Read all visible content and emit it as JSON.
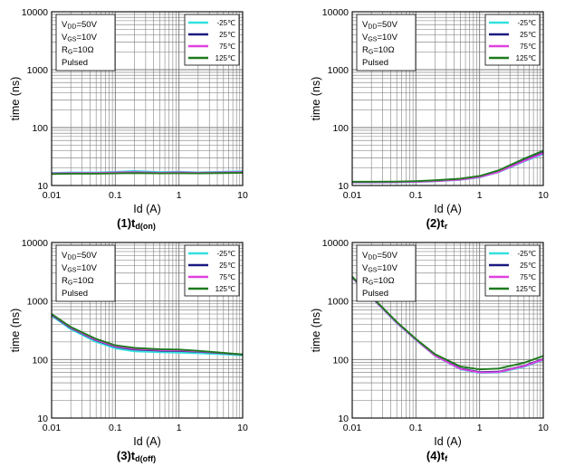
{
  "colors": {
    "series": [
      "#33e0e0",
      "#1a1a80",
      "#e040e0",
      "#1e7a1e"
    ],
    "grid": "#777777",
    "frame": "#000000"
  },
  "chart_data": [
    {
      "type": "line",
      "title_main": "(1)t",
      "title_sub": "d(on)",
      "xlabel": "Id (A)",
      "ylabel": "time (ns)",
      "xscale": "log",
      "yscale": "log",
      "xlim": [
        0.01,
        10
      ],
      "ylim": [
        10,
        10000
      ],
      "x_ticks": [
        "0.01",
        "0.1",
        "1",
        "10"
      ],
      "y_ticks": [
        "10",
        "100",
        "1000",
        "10000"
      ],
      "conditions": [
        {
          "main": "V",
          "sub": "DD",
          "rest": "=50V"
        },
        {
          "main": "V",
          "sub": "GS",
          "rest": "=10V"
        },
        {
          "main": "R",
          "sub": "G",
          "rest": "=10Ω"
        },
        {
          "main": "Pulsed",
          "sub": "",
          "rest": ""
        }
      ],
      "legend_position": "top-right",
      "x": [
        0.01,
        0.02,
        0.05,
        0.1,
        0.2,
        0.5,
        1,
        2,
        5,
        10
      ],
      "series": [
        {
          "name": "-25℃",
          "values": [
            16.5,
            16.8,
            16.8,
            17.2,
            17.8,
            17.0,
            17.3,
            16.9,
            17.3,
            17.6
          ]
        },
        {
          "name": "25℃",
          "values": [
            16.0,
            16.2,
            16.2,
            16.4,
            16.7,
            16.4,
            16.6,
            16.4,
            16.6,
            16.9
          ]
        },
        {
          "name": "75℃",
          "values": [
            16.2,
            16.4,
            16.4,
            16.8,
            17.0,
            16.6,
            16.9,
            16.6,
            16.9,
            17.1
          ]
        },
        {
          "name": "125℃",
          "values": [
            15.8,
            16.0,
            16.0,
            16.2,
            16.4,
            16.2,
            16.3,
            16.2,
            16.4,
            16.6
          ]
        }
      ]
    },
    {
      "type": "line",
      "title_main": "(2)t",
      "title_sub": "r",
      "xlabel": "Id (A)",
      "ylabel": "time (ns)",
      "xscale": "log",
      "yscale": "log",
      "xlim": [
        0.01,
        10
      ],
      "ylim": [
        10,
        10000
      ],
      "x_ticks": [
        "0.01",
        "0.1",
        "1",
        "10"
      ],
      "y_ticks": [
        "10",
        "100",
        "1000",
        "10000"
      ],
      "conditions": [
        {
          "main": "V",
          "sub": "DD",
          "rest": "=50V"
        },
        {
          "main": "V",
          "sub": "GS",
          "rest": "=10V"
        },
        {
          "main": "R",
          "sub": "G",
          "rest": "=10Ω"
        },
        {
          "main": "Pulsed",
          "sub": "",
          "rest": ""
        }
      ],
      "legend_position": "top-right",
      "x": [
        0.01,
        0.02,
        0.05,
        0.1,
        0.2,
        0.5,
        1,
        2,
        5,
        10
      ],
      "series": [
        {
          "name": "-25℃",
          "values": [
            11.2,
            11.2,
            11.3,
            11.5,
            11.8,
            12.5,
            13.8,
            17.0,
            26.0,
            35.0
          ]
        },
        {
          "name": "25℃",
          "values": [
            11.4,
            11.4,
            11.5,
            11.7,
            12.0,
            12.8,
            14.2,
            17.5,
            27.0,
            37.0
          ]
        },
        {
          "name": "75℃",
          "values": [
            11.3,
            11.3,
            11.4,
            11.6,
            11.9,
            12.6,
            14.0,
            17.2,
            26.5,
            36.0
          ]
        },
        {
          "name": "125℃",
          "values": [
            11.6,
            11.6,
            11.7,
            11.9,
            12.3,
            13.1,
            14.6,
            18.3,
            29.0,
            40.0
          ]
        }
      ]
    },
    {
      "type": "line",
      "title_main": "(3)t",
      "title_sub": "d(off)",
      "xlabel": "Id (A)",
      "ylabel": "time (ns)",
      "xscale": "log",
      "yscale": "log",
      "xlim": [
        0.01,
        10
      ],
      "ylim": [
        10,
        10000
      ],
      "x_ticks": [
        "0.01",
        "0.1",
        "1",
        "10"
      ],
      "y_ticks": [
        "10",
        "100",
        "1000",
        "10000"
      ],
      "conditions": [
        {
          "main": "V",
          "sub": "DD",
          "rest": "=50V"
        },
        {
          "main": "V",
          "sub": "GS",
          "rest": "=10V"
        },
        {
          "main": "R",
          "sub": "G",
          "rest": "=10Ω"
        },
        {
          "main": "Pulsed",
          "sub": "",
          "rest": ""
        }
      ],
      "legend_position": "top-right",
      "x": [
        0.01,
        0.02,
        0.05,
        0.1,
        0.2,
        0.5,
        1,
        2,
        5,
        10
      ],
      "series": [
        {
          "name": "-25℃",
          "values": [
            560,
            330,
            200,
            155,
            138,
            133,
            131,
            128,
            123,
            118
          ]
        },
        {
          "name": "25℃",
          "values": [
            580,
            345,
            212,
            165,
            148,
            142,
            140,
            136,
            128,
            121
          ]
        },
        {
          "name": "75℃",
          "values": [
            590,
            350,
            216,
            168,
            152,
            145,
            143,
            138,
            129,
            122
          ]
        },
        {
          "name": "125℃",
          "values": [
            600,
            360,
            225,
            175,
            158,
            150,
            148,
            141,
            130,
            122
          ]
        }
      ]
    },
    {
      "type": "line",
      "title_main": "(4)t",
      "title_sub": "f",
      "xlabel": "Id (A)",
      "ylabel": "time (ns)",
      "xscale": "log",
      "yscale": "log",
      "xlim": [
        0.01,
        10
      ],
      "ylim": [
        10,
        10000
      ],
      "x_ticks": [
        "0.01",
        "0.1",
        "1",
        "10"
      ],
      "y_ticks": [
        "10",
        "100",
        "1000",
        "10000"
      ],
      "conditions": [
        {
          "main": "V",
          "sub": "DD",
          "rest": "=50V"
        },
        {
          "main": "V",
          "sub": "GS",
          "rest": "=10V"
        },
        {
          "main": "R",
          "sub": "G",
          "rest": "=10Ω"
        },
        {
          "main": "Pulsed",
          "sub": "",
          "rest": ""
        }
      ],
      "legend_position": "top-right",
      "x": [
        0.01,
        0.02,
        0.05,
        0.1,
        0.2,
        0.5,
        1,
        2,
        5,
        10
      ],
      "series": [
        {
          "name": "-25℃",
          "values": [
            2500,
            1150,
            420,
            215,
            115,
            68,
            59,
            60,
            75,
            98
          ]
        },
        {
          "name": "25℃",
          "values": [
            2550,
            1180,
            430,
            220,
            118,
            70,
            61,
            62,
            78,
            102
          ]
        },
        {
          "name": "75℃",
          "values": [
            2520,
            1160,
            425,
            218,
            116,
            69,
            60,
            61,
            77,
            100
          ]
        },
        {
          "name": "125℃",
          "values": [
            2600,
            1200,
            440,
            225,
            123,
            76,
            68,
            70,
            88,
            115
          ]
        }
      ]
    }
  ]
}
